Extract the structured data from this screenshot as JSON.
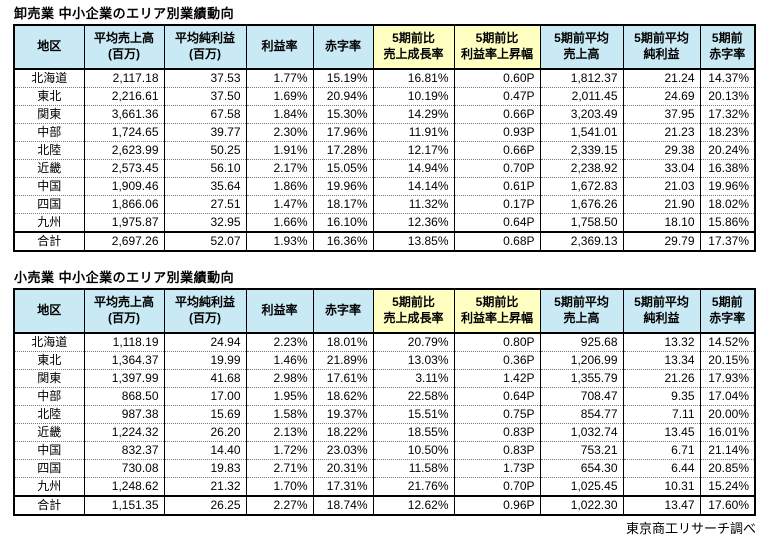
{
  "footer": "東京商工リサーチ調べ",
  "colors": {
    "header_blue": "#C9EAF4",
    "header_yellow": "#FFFFC2",
    "border": "#000000"
  },
  "chart_data": [
    {
      "type": "table",
      "title": "卸売業 中小企業のエリア別業績動向",
      "columns": [
        {
          "label": "地区",
          "highlight": "header_blue"
        },
        {
          "label": "平均売上高\n(百万)",
          "highlight": "header_blue"
        },
        {
          "label": "平均純利益\n(百万)",
          "highlight": "header_blue"
        },
        {
          "label": "利益率",
          "highlight": "header_blue"
        },
        {
          "label": "赤字率",
          "highlight": "header_blue"
        },
        {
          "label": "5期前比\n売上成長率",
          "highlight": "header_yellow"
        },
        {
          "label": "5期前比\n利益率上昇幅",
          "highlight": "header_yellow"
        },
        {
          "label": "5期前平均\n売上高",
          "highlight": "header_blue"
        },
        {
          "label": "5期前平均\n純利益",
          "highlight": "header_blue"
        },
        {
          "label": "5期前\n赤字率",
          "highlight": "header_blue"
        }
      ],
      "rows": [
        [
          "北海道",
          "2,117.18",
          "37.53",
          "1.77%",
          "15.19%",
          "16.81%",
          "0.60P",
          "1,812.37",
          "21.24",
          "14.37%"
        ],
        [
          "東北",
          "2,216.61",
          "37.50",
          "1.69%",
          "20.94%",
          "10.19%",
          "0.47P",
          "2,011.45",
          "24.69",
          "20.13%"
        ],
        [
          "関東",
          "3,661.36",
          "67.58",
          "1.84%",
          "15.30%",
          "14.29%",
          "0.66P",
          "3,203.49",
          "37.95",
          "17.32%"
        ],
        [
          "中部",
          "1,724.65",
          "39.77",
          "2.30%",
          "17.96%",
          "11.91%",
          "0.93P",
          "1,541.01",
          "21.23",
          "18.23%"
        ],
        [
          "北陸",
          "2,623.99",
          "50.25",
          "1.91%",
          "17.28%",
          "12.17%",
          "0.66P",
          "2,339.15",
          "29.38",
          "20.24%"
        ],
        [
          "近畿",
          "2,573.45",
          "56.10",
          "2.17%",
          "15.05%",
          "14.94%",
          "0.70P",
          "2,238.92",
          "33.04",
          "16.38%"
        ],
        [
          "中国",
          "1,909.46",
          "35.64",
          "1.86%",
          "19.96%",
          "14.14%",
          "0.61P",
          "1,672.83",
          "21.03",
          "19.96%"
        ],
        [
          "四国",
          "1,866.06",
          "27.51",
          "1.47%",
          "18.17%",
          "11.32%",
          "0.17P",
          "1,676.26",
          "21.90",
          "18.02%"
        ],
        [
          "九州",
          "1,975.87",
          "32.95",
          "1.66%",
          "16.10%",
          "12.36%",
          "0.64P",
          "1,758.50",
          "18.10",
          "15.86%"
        ],
        [
          "合計",
          "2,697.26",
          "52.07",
          "1.93%",
          "16.36%",
          "13.85%",
          "0.68P",
          "2,369.13",
          "29.79",
          "17.37%"
        ]
      ]
    },
    {
      "type": "table",
      "title": "小売業 中小企業のエリア別業績動向",
      "columns": [
        {
          "label": "地区",
          "highlight": "header_blue"
        },
        {
          "label": "平均売上高\n(百万)",
          "highlight": "header_blue"
        },
        {
          "label": "平均純利益\n(百万)",
          "highlight": "header_blue"
        },
        {
          "label": "利益率",
          "highlight": "header_blue"
        },
        {
          "label": "赤字率",
          "highlight": "header_blue"
        },
        {
          "label": "5期前比\n売上成長率",
          "highlight": "header_yellow"
        },
        {
          "label": "5期前比\n利益率上昇幅",
          "highlight": "header_yellow"
        },
        {
          "label": "5期前平均\n売上高",
          "highlight": "header_blue"
        },
        {
          "label": "5期前平均\n純利益",
          "highlight": "header_blue"
        },
        {
          "label": "5期前\n赤字率",
          "highlight": "header_blue"
        }
      ],
      "rows": [
        [
          "北海道",
          "1,118.19",
          "24.94",
          "2.23%",
          "18.01%",
          "20.79%",
          "0.80P",
          "925.68",
          "13.32",
          "14.52%"
        ],
        [
          "東北",
          "1,364.37",
          "19.99",
          "1.46%",
          "21.89%",
          "13.03%",
          "0.36P",
          "1,206.99",
          "13.34",
          "20.15%"
        ],
        [
          "関東",
          "1,397.99",
          "41.68",
          "2.98%",
          "17.61%",
          "3.11%",
          "1.42P",
          "1,355.79",
          "21.26",
          "17.93%"
        ],
        [
          "中部",
          "868.50",
          "17.00",
          "1.95%",
          "18.62%",
          "22.58%",
          "0.64P",
          "708.47",
          "9.35",
          "17.04%"
        ],
        [
          "北陸",
          "987.38",
          "15.69",
          "1.58%",
          "19.37%",
          "15.51%",
          "0.75P",
          "854.77",
          "7.11",
          "20.00%"
        ],
        [
          "近畿",
          "1,224.32",
          "26.20",
          "2.13%",
          "18.22%",
          "18.55%",
          "0.83P",
          "1,032.74",
          "13.45",
          "16.01%"
        ],
        [
          "中国",
          "832.37",
          "14.40",
          "1.72%",
          "23.03%",
          "10.50%",
          "0.83P",
          "753.21",
          "6.71",
          "21.14%"
        ],
        [
          "四国",
          "730.08",
          "19.83",
          "2.71%",
          "20.31%",
          "11.58%",
          "1.73P",
          "654.30",
          "6.44",
          "20.85%"
        ],
        [
          "九州",
          "1,248.62",
          "21.32",
          "1.70%",
          "17.31%",
          "21.76%",
          "0.70P",
          "1,025.45",
          "10.31",
          "15.24%"
        ],
        [
          "合計",
          "1,151.35",
          "26.25",
          "2.27%",
          "18.74%",
          "12.62%",
          "0.96P",
          "1,022.30",
          "13.47",
          "17.60%"
        ]
      ]
    }
  ]
}
